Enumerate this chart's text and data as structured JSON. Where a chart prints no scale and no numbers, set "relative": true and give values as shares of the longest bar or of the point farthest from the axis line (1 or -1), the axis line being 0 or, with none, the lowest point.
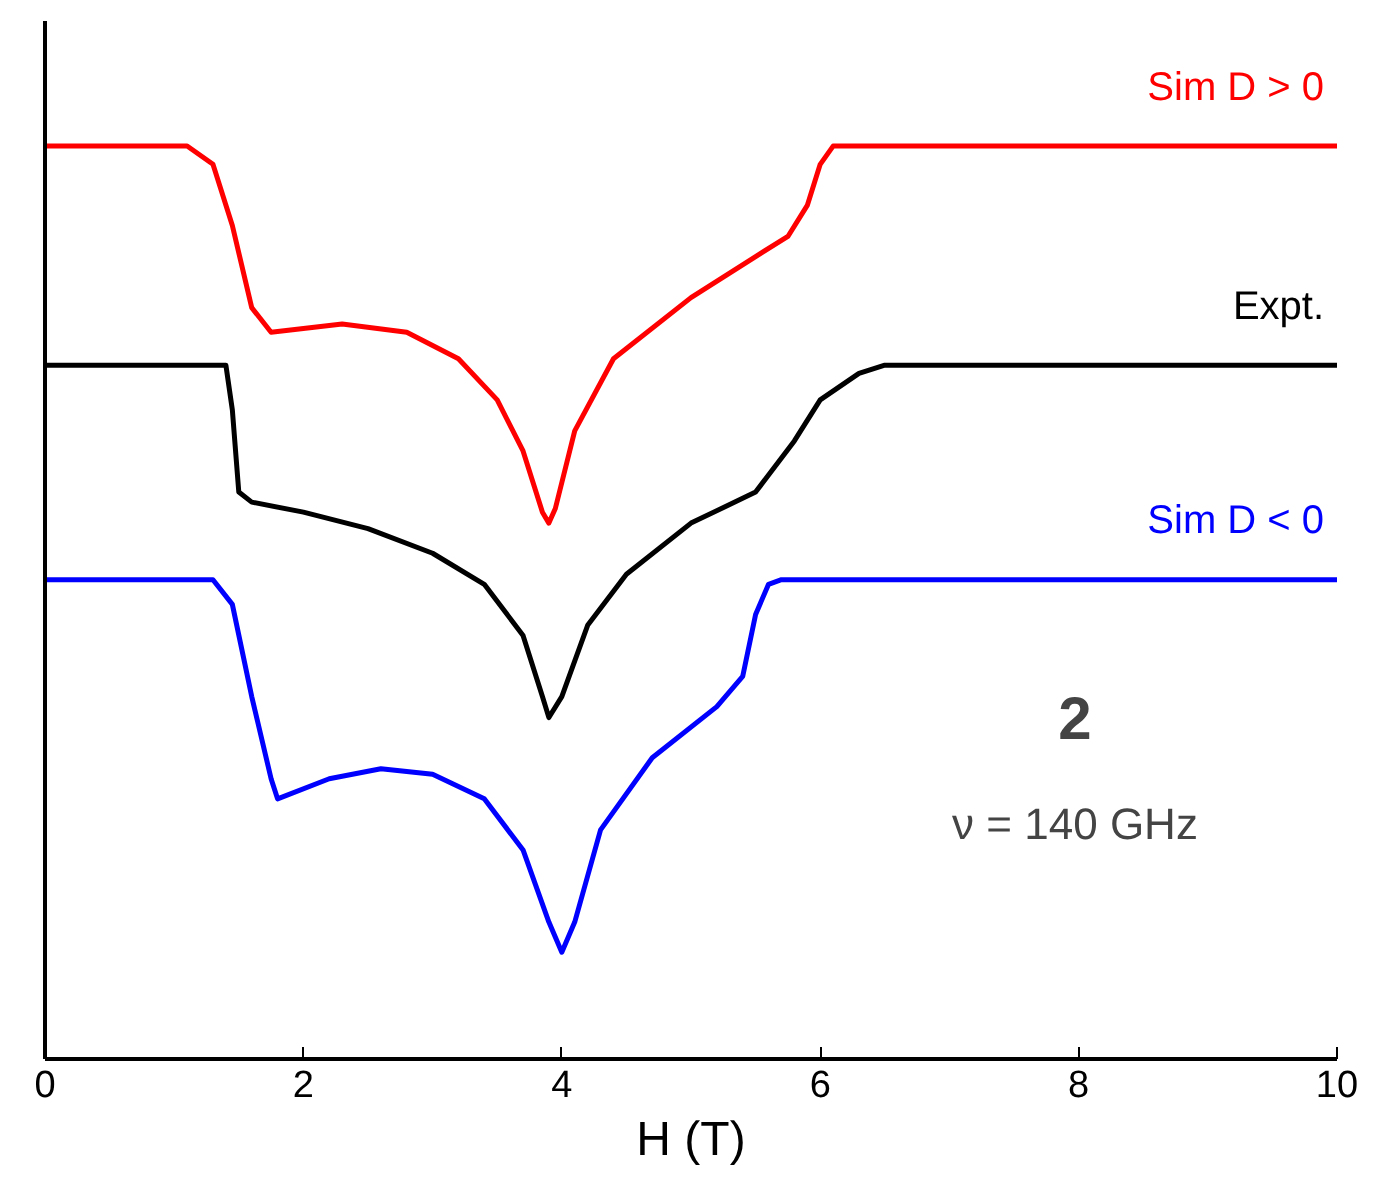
{
  "chart_data": {
    "type": "line",
    "relative": true,
    "xlabel": "H (T)",
    "xlim": [
      0,
      10
    ],
    "xticks": [
      0,
      2,
      4,
      6,
      8,
      10
    ],
    "grid": false,
    "series": [
      {
        "name": "Sim D > 0",
        "color": "#ff0000",
        "x": [
          0,
          1.1,
          1.3,
          1.45,
          1.6,
          1.75,
          2.3,
          2.8,
          3.2,
          3.5,
          3.7,
          3.85,
          3.9,
          3.95,
          4.1,
          4.4,
          5,
          5.5,
          5.75,
          5.9,
          6.0,
          6.1,
          10
        ],
        "values": [
          1.0,
          1.0,
          0.98,
          0.913,
          0.823,
          0.796,
          0.805,
          0.796,
          0.767,
          0.722,
          0.666,
          0.599,
          0.587,
          0.603,
          0.688,
          0.767,
          0.834,
          0.879,
          0.901,
          0.935,
          0.98,
          1.0,
          1.0
        ]
      },
      {
        "name": "Expt.",
        "color": "#000000",
        "x": [
          0,
          1.4,
          1.45,
          1.5,
          1.6,
          2.0,
          2.5,
          3.0,
          3.4,
          3.7,
          3.85,
          3.9,
          4.0,
          4.2,
          4.5,
          5,
          5.5,
          5.8,
          6.0,
          6.3,
          6.5,
          10
        ],
        "values": [
          0.76,
          0.76,
          0.711,
          0.621,
          0.61,
          0.599,
          0.581,
          0.554,
          0.52,
          0.464,
          0.397,
          0.374,
          0.397,
          0.475,
          0.531,
          0.587,
          0.621,
          0.677,
          0.722,
          0.751,
          0.76,
          0.76
        ]
      },
      {
        "name": "Sim D < 0",
        "color": "#0000ff",
        "x": [
          0,
          1.3,
          1.45,
          1.6,
          1.75,
          1.8,
          2.2,
          2.6,
          3.0,
          3.4,
          3.7,
          3.9,
          4.0,
          4.1,
          4.3,
          4.7,
          5.2,
          5.4,
          5.5,
          5.6,
          5.7,
          10
        ],
        "values": [
          0.525,
          0.525,
          0.498,
          0.397,
          0.307,
          0.285,
          0.307,
          0.318,
          0.312,
          0.285,
          0.229,
          0.15,
          0.117,
          0.15,
          0.251,
          0.33,
          0.386,
          0.419,
          0.487,
          0.52,
          0.525,
          0.525
        ]
      }
    ],
    "annotations": [
      "2",
      "ν = 140 GHz"
    ]
  }
}
